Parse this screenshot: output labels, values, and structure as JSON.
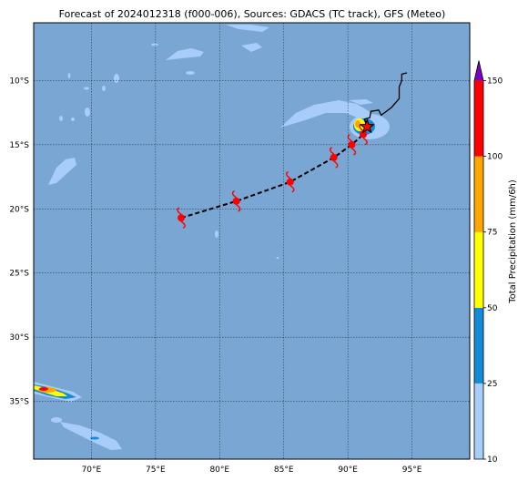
{
  "title": "Forecast of 2024012318 (f000-006), Sources: GDACS (TC track), GFS (Meteo)",
  "map": {
    "lon_range": [
      65.5,
      99.5
    ],
    "lat_range": [
      -39.5,
      -5.5
    ],
    "lon_ticks": [
      70,
      75,
      80,
      85,
      90,
      95
    ],
    "lon_tick_labels": [
      "70°E",
      "75°E",
      "80°E",
      "85°E",
      "90°E",
      "95°E"
    ],
    "lat_ticks": [
      -10,
      -15,
      -20,
      -25,
      -30,
      -35
    ],
    "lat_tick_labels": [
      "10°S",
      "15°S",
      "20°S",
      "25°S",
      "30°S",
      "35°S"
    ],
    "ocean_color": "#79a6d2",
    "grid": true
  },
  "track": {
    "forecast_points": [
      {
        "lon": 77.0,
        "lat": -20.7
      },
      {
        "lon": 81.3,
        "lat": -19.4
      },
      {
        "lon": 85.5,
        "lat": -17.9
      },
      {
        "lon": 88.9,
        "lat": -16.0
      },
      {
        "lon": 90.3,
        "lat": -15.0
      },
      {
        "lon": 91.2,
        "lat": -14.2
      }
    ],
    "current_position": {
      "lon": 91.5,
      "lat": -13.6
    },
    "past_track": [
      [
        91.5,
        -13.6
      ],
      [
        91.3,
        -13.0
      ],
      [
        91.7,
        -12.9
      ],
      [
        91.8,
        -12.4
      ],
      [
        92.4,
        -12.3
      ],
      [
        92.6,
        -12.7
      ],
      [
        93.4,
        -12.1
      ],
      [
        94.0,
        -11.4
      ],
      [
        94.0,
        -10.5
      ],
      [
        94.2,
        -10.0
      ],
      [
        94.2,
        -9.5
      ],
      [
        94.6,
        -9.4
      ]
    ]
  },
  "colorbar": {
    "label": "Total Precipitation (mm/6h)",
    "ticks": [
      "10",
      "25",
      "50",
      "75",
      "100",
      "150"
    ],
    "colors": [
      "#a9cdfb",
      "#138bd6",
      "#ffff00",
      "#ffa500",
      "#ff0000",
      "#7b00c0"
    ]
  }
}
